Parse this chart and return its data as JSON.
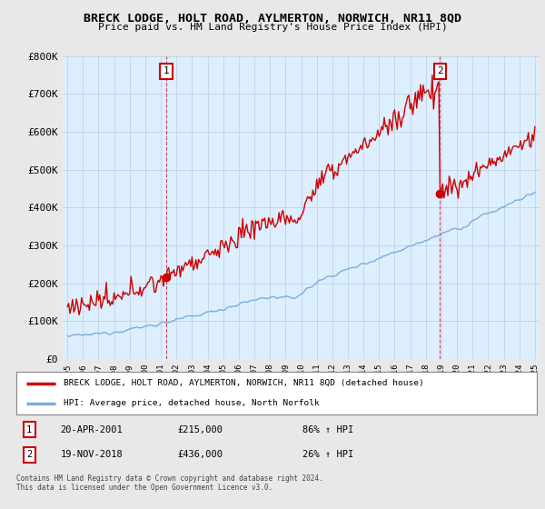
{
  "title": "BRECK LODGE, HOLT ROAD, AYLMERTON, NORWICH, NR11 8QD",
  "subtitle": "Price paid vs. HM Land Registry's House Price Index (HPI)",
  "legend_line1": "BRECK LODGE, HOLT ROAD, AYLMERTON, NORWICH, NR11 8QD (detached house)",
  "legend_line2": "HPI: Average price, detached house, North Norfolk",
  "annotation1_date": "20-APR-2001",
  "annotation1_price": "£215,000",
  "annotation1_hpi": "86% ↑ HPI",
  "annotation2_date": "19-NOV-2018",
  "annotation2_price": "£436,000",
  "annotation2_hpi": "26% ↑ HPI",
  "footer": "Contains HM Land Registry data © Crown copyright and database right 2024.\nThis data is licensed under the Open Government Licence v3.0.",
  "hpi_color": "#7aaedc",
  "price_color": "#cc0000",
  "background_color": "#e8e8e8",
  "plot_bg_color": "#ddeeff",
  "ylim": [
    0,
    800000
  ],
  "yticks": [
    0,
    100000,
    200000,
    300000,
    400000,
    500000,
    600000,
    700000,
    800000
  ],
  "ytick_labels": [
    "£0",
    "£100K",
    "£200K",
    "£300K",
    "£400K",
    "£500K",
    "£600K",
    "£700K",
    "£800K"
  ],
  "sale1_year": 2001.3,
  "sale1_price": 215000,
  "sale2_year": 2018.88,
  "sale2_price": 436000,
  "year_start": 1995,
  "year_end": 2025
}
